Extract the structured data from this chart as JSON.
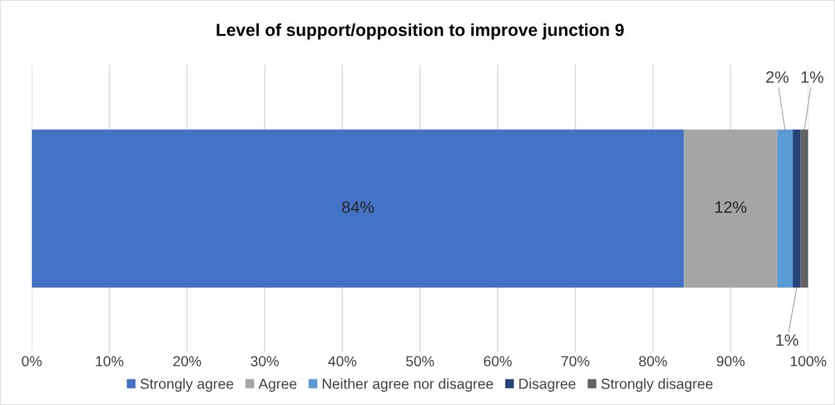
{
  "chart_data": {
    "type": "bar",
    "orientation": "horizontal",
    "stacked": true,
    "title": "Level of support/opposition to improve junction 9",
    "categories": [
      null
    ],
    "series": [
      {
        "name": "Strongly agree",
        "color": "#4472c4",
        "values": [
          84
        ],
        "value_labels": [
          "84%"
        ]
      },
      {
        "name": "Agree",
        "color": "#a5a5a5",
        "values": [
          12
        ],
        "value_labels": [
          "12%"
        ]
      },
      {
        "name": "Neither agree nor disagree",
        "color": "#5b9bd5",
        "values": [
          2
        ],
        "value_labels": [
          "2%"
        ]
      },
      {
        "name": "Disagree",
        "color": "#264478",
        "values": [
          1
        ],
        "value_labels": [
          "1%"
        ]
      },
      {
        "name": "Strongly disagree",
        "color": "#636363",
        "values": [
          1
        ],
        "value_labels": [
          "1%"
        ]
      }
    ],
    "xlim": [
      0,
      100
    ],
    "xticks": [
      {
        "value": 0,
        "label": "0%"
      },
      {
        "value": 10,
        "label": "10%"
      },
      {
        "value": 20,
        "label": "20%"
      },
      {
        "value": 30,
        "label": "30%"
      },
      {
        "value": 40,
        "label": "40%"
      },
      {
        "value": 50,
        "label": "50%"
      },
      {
        "value": 60,
        "label": "60%"
      },
      {
        "value": 70,
        "label": "70%"
      },
      {
        "value": 80,
        "label": "80%"
      },
      {
        "value": 90,
        "label": "90%"
      },
      {
        "value": 100,
        "label": "100%"
      }
    ],
    "grid": "x",
    "legend": "bottom"
  }
}
